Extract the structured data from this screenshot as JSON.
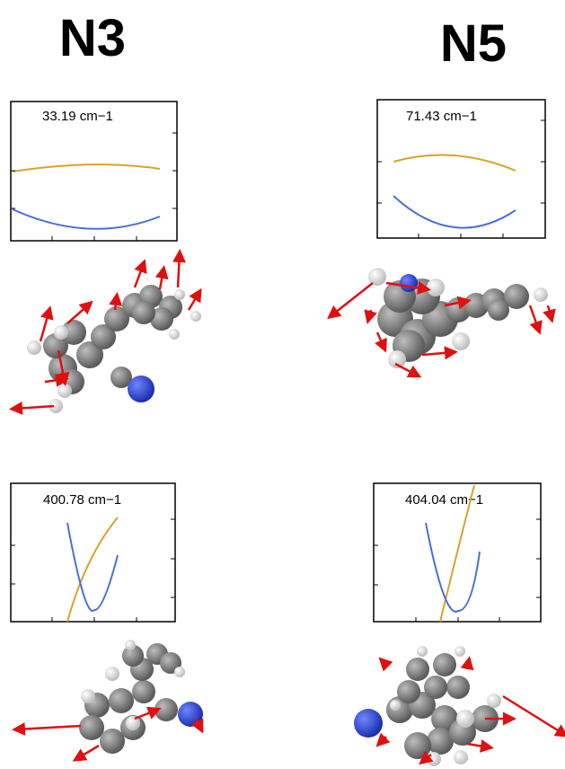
{
  "figure": {
    "titles": [
      "N3",
      "N5"
    ],
    "panels": [
      {
        "label": "33.19 cm−1"
      },
      {
        "label": "71.43 cm−1"
      },
      {
        "label": "400.78 cm−1"
      },
      {
        "label": "404.04 cm−1"
      }
    ]
  }
}
